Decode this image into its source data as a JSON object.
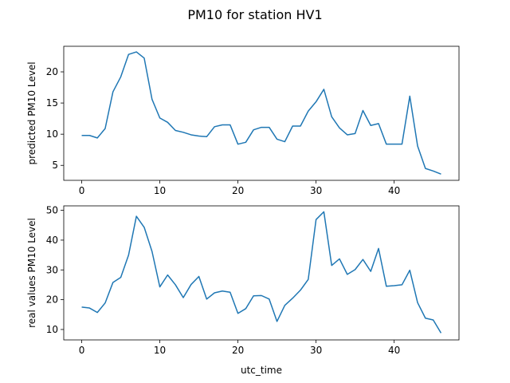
{
  "figure": {
    "title": "PM10 for station HV1"
  },
  "chart_data": [
    {
      "type": "line",
      "title": "",
      "xlabel": "",
      "ylabel": "predicted PM10 Level",
      "xlim": [
        -2.3,
        48.3
      ],
      "ylim": [
        2.6,
        24.1
      ],
      "xticks": [
        0,
        10,
        20,
        30,
        40
      ],
      "yticks": [
        5,
        10,
        15,
        20
      ],
      "grid": false,
      "color": "#1f77b4",
      "series": [
        {
          "x": [
            0,
            1,
            2,
            3,
            4,
            5,
            6,
            7,
            8,
            9,
            10,
            11,
            12,
            13,
            14,
            15,
            16,
            17,
            18,
            19,
            20,
            21,
            22,
            23,
            24,
            25,
            26,
            27,
            28,
            29,
            30,
            31,
            32,
            33,
            34,
            35,
            36,
            37,
            38,
            39,
            40,
            41,
            42,
            43,
            44,
            45,
            46
          ],
          "values": [
            9.8,
            9.8,
            9.4,
            10.9,
            16.8,
            19.2,
            22.8,
            23.2,
            22.2,
            15.6,
            12.6,
            11.9,
            10.6,
            10.3,
            9.9,
            9.7,
            9.6,
            11.2,
            11.5,
            11.5,
            8.4,
            8.7,
            10.7,
            11.1,
            11.1,
            9.2,
            8.8,
            11.3,
            11.3,
            13.7,
            15.2,
            17.2,
            12.8,
            11.0,
            9.9,
            10.1,
            13.8,
            11.4,
            11.7,
            8.4,
            8.4,
            8.4,
            16.1,
            8.1,
            4.5,
            4.1,
            3.6
          ]
        }
      ]
    },
    {
      "type": "line",
      "title": "",
      "xlabel": "utc_time",
      "ylabel": "real values PM10 Level",
      "xlim": [
        -2.3,
        48.3
      ],
      "ylim": [
        6.5,
        51.5
      ],
      "xticks": [
        0,
        10,
        20,
        30,
        40
      ],
      "yticks": [
        10,
        20,
        30,
        40,
        50
      ],
      "grid": false,
      "color": "#1f77b4",
      "series": [
        {
          "x": [
            0,
            1,
            2,
            3,
            4,
            5,
            6,
            7,
            8,
            9,
            10,
            11,
            12,
            13,
            14,
            15,
            16,
            17,
            18,
            19,
            20,
            21,
            22,
            23,
            24,
            25,
            26,
            27,
            28,
            29,
            30,
            31,
            32,
            33,
            34,
            35,
            36,
            37,
            38,
            39,
            40,
            41,
            42,
            43,
            44,
            45,
            46
          ],
          "values": [
            17.5,
            17.2,
            15.7,
            18.9,
            25.8,
            27.5,
            35.0,
            48.0,
            44.3,
            36.2,
            24.3,
            28.3,
            25.0,
            20.7,
            25.1,
            27.8,
            20.2,
            22.3,
            22.9,
            22.5,
            15.4,
            17.0,
            21.3,
            21.4,
            20.2,
            12.7,
            18.1,
            20.5,
            23.2,
            26.8,
            46.9,
            49.5,
            31.5,
            33.7,
            28.5,
            30.1,
            33.5,
            29.5,
            37.2,
            24.5,
            24.7,
            25.0,
            29.9,
            19.0,
            13.8,
            13.2,
            8.8
          ]
        }
      ]
    }
  ]
}
